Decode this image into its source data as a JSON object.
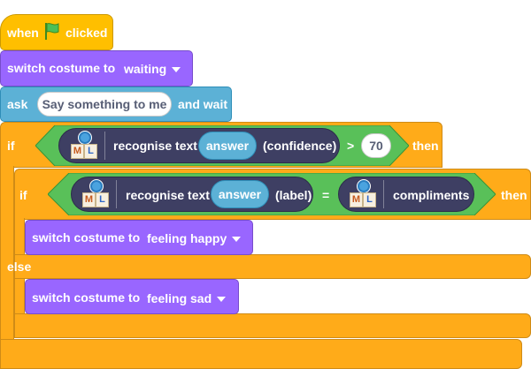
{
  "blocks": {
    "hat": {
      "when": "when",
      "clicked": "clicked",
      "flag_icon": "green-flag-icon"
    },
    "switch_costume_1": {
      "label": "switch costume to",
      "value": "waiting"
    },
    "ask": {
      "label": "ask",
      "question": "Say something to me",
      "suffix": "and wait"
    },
    "if_outer": {
      "if_label": "if",
      "reporter": "recognise text",
      "arg": "answer",
      "field": "(confidence)",
      "operator": ">",
      "threshold": "70",
      "then_label": "then"
    },
    "if_inner": {
      "if_label": "if",
      "reporter": "recognise text",
      "arg": "answer",
      "field": "(label)",
      "operator": "=",
      "compare_to": "compliments",
      "then_label": "then",
      "else_label": "else"
    },
    "switch_costume_happy": {
      "label": "switch costume to",
      "value": "feeling happy"
    },
    "switch_costume_sad": {
      "label": "switch costume to",
      "value": "feeling sad"
    }
  },
  "ml_icon": {
    "left": "M",
    "right": "L"
  },
  "colors": {
    "events": "#FFBF00",
    "looks": "#9966FF",
    "sensing": "#5CB1D6",
    "control": "#FFAB19",
    "operators": "#59C059",
    "extension": "#3E3F63"
  }
}
